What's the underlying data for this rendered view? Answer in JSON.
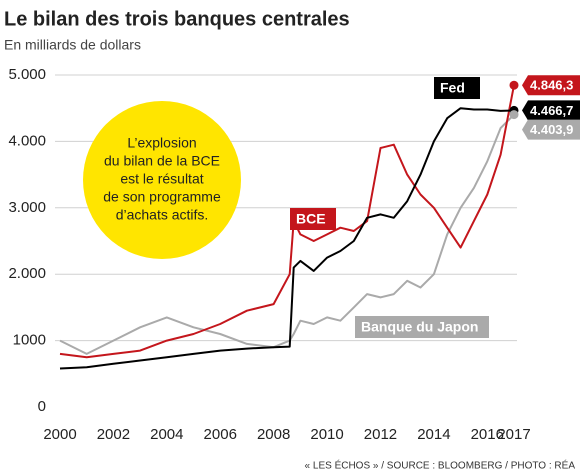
{
  "chart_data": {
    "type": "line",
    "title": "Le bilan des trois banques centrales",
    "subtitle": "En milliards de dollars",
    "source": "« LES ÉCHOS » / SOURCE : BLOOMBERG / PHOTO : RÉA",
    "annotation": [
      "L’explosion",
      "du bilan de la BCE",
      "est le résultat",
      "de son programme",
      "d’achats actifs."
    ],
    "x": [
      2000,
      2001,
      2002,
      2003,
      2004,
      2005,
      2006,
      2007,
      2008,
      2008.6,
      2008.75,
      2009,
      2009.5,
      2010,
      2010.5,
      2011,
      2011.5,
      2012,
      2012.5,
      2013,
      2013.5,
      2014,
      2014.5,
      2015,
      2015.5,
      2016,
      2016.5,
      2017
    ],
    "xlim": [
      2000,
      2017
    ],
    "xticks": [
      2000,
      2002,
      2004,
      2006,
      2008,
      2010,
      2012,
      2014,
      2016,
      2017
    ],
    "ylim": [
      0,
      5000
    ],
    "yticks": [
      0,
      1000,
      {
        "value": 2000,
        "label": "2.000"
      },
      {
        "value": 3000,
        "label": "3.000"
      },
      {
        "value": 4000,
        "label": "4.000"
      },
      {
        "value": 5000,
        "label": "5.000"
      }
    ],
    "grid": true,
    "series": [
      {
        "name": "Fed",
        "color": "#000000",
        "values": [
          580,
          600,
          650,
          700,
          750,
          800,
          850,
          880,
          900,
          910,
          2100,
          2200,
          2050,
          2250,
          2350,
          2500,
          2850,
          2900,
          2850,
          3100,
          3500,
          4000,
          4350,
          4500,
          4480,
          4480,
          4460,
          4466.7
        ],
        "value_labels": [
          null,
          null,
          null,
          null,
          null,
          null,
          null,
          null,
          null,
          null,
          null,
          null,
          null,
          null,
          null,
          null,
          null,
          null,
          null,
          null,
          null,
          null,
          null,
          null,
          null,
          null,
          null,
          "4.466,7"
        ]
      },
      {
        "name": "BCE",
        "color": "#c4161c",
        "values": [
          800,
          750,
          800,
          850,
          1000,
          1100,
          1250,
          1450,
          1550,
          2000,
          2800,
          2600,
          2500,
          2600,
          2700,
          2650,
          2800,
          3900,
          3950,
          3500,
          3200,
          3000,
          2700,
          2400,
          2800,
          3200,
          3800,
          4846.3
        ],
        "value_labels": [
          null,
          null,
          null,
          null,
          null,
          null,
          null,
          null,
          null,
          null,
          null,
          null,
          null,
          null,
          null,
          null,
          null,
          null,
          null,
          null,
          null,
          null,
          null,
          null,
          null,
          null,
          null,
          "4.846,3"
        ]
      },
      {
        "name": "Banque du Japon",
        "color": "#aaaaaa",
        "values": [
          1000,
          800,
          1000,
          1200,
          1350,
          1200,
          1100,
          950,
          900,
          1000,
          1100,
          1300,
          1250,
          1350,
          1300,
          1500,
          1700,
          1650,
          1700,
          1900,
          1800,
          2000,
          2600,
          3000,
          3300,
          3700,
          4200,
          4403.9
        ],
        "value_labels": [
          null,
          null,
          null,
          null,
          null,
          null,
          null,
          null,
          null,
          null,
          null,
          null,
          null,
          null,
          null,
          null,
          null,
          null,
          null,
          null,
          null,
          null,
          null,
          null,
          null,
          null,
          null,
          "4.403,9"
        ]
      }
    ]
  }
}
